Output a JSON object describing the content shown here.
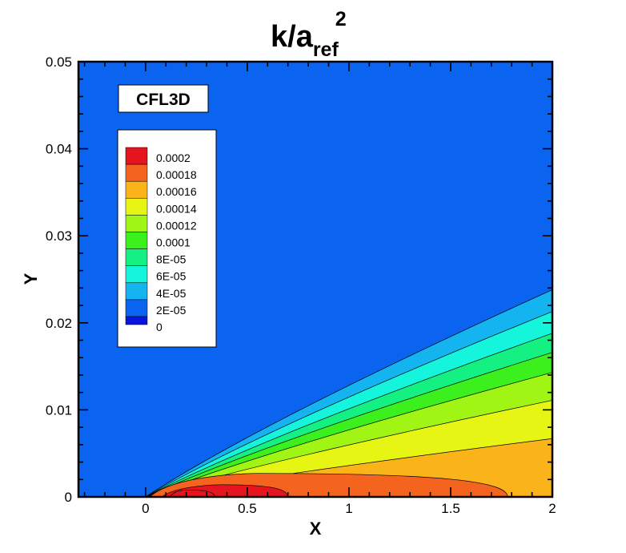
{
  "chart_data": {
    "type": "contour",
    "title": {
      "main": "k/a",
      "sub": "ref",
      "sup": "2"
    },
    "tag": "CFL3D",
    "xlabel": "X",
    "ylabel": "Y",
    "xlim": [
      -0.33,
      2.0
    ],
    "ylim": [
      0,
      0.05
    ],
    "x_ticks": [
      {
        "v": 0,
        "label": "0"
      },
      {
        "v": 0.5,
        "label": "0.5"
      },
      {
        "v": 1,
        "label": "1"
      },
      {
        "v": 1.5,
        "label": "1.5"
      },
      {
        "v": 2,
        "label": "2"
      }
    ],
    "y_ticks": [
      {
        "v": 0,
        "label": "0"
      },
      {
        "v": 0.01,
        "label": "0.01"
      },
      {
        "v": 0.02,
        "label": "0.02"
      },
      {
        "v": 0.03,
        "label": "0.03"
      },
      {
        "v": 0.04,
        "label": "0.04"
      },
      {
        "v": 0.05,
        "label": "0.05"
      }
    ],
    "x_minor_step": 0.1,
    "y_minor_step": 0.002,
    "background_color": "#0a64f0",
    "legend_location": "upper-left",
    "levels": [
      {
        "value": 0.0002,
        "label": "0.0002",
        "color": "#e6141e"
      },
      {
        "value": 0.00018,
        "label": "0.00018",
        "color": "#f5641e"
      },
      {
        "value": 0.00016,
        "label": "0.00016",
        "color": "#fab419"
      },
      {
        "value": 0.00014,
        "label": "0.00014",
        "color": "#e6f514"
      },
      {
        "value": 0.00012,
        "label": "0.00012",
        "color": "#a0f514"
      },
      {
        "value": 0.0001,
        "label": "0.0001",
        "color": "#3cf01e"
      },
      {
        "value": 8e-05,
        "label": "8E-05",
        "color": "#14f082"
      },
      {
        "value": 6e-05,
        "label": "6E-05",
        "color": "#14f5dc"
      },
      {
        "value": 4e-05,
        "label": "4E-05",
        "color": "#14b4f0"
      },
      {
        "value": 2e-05,
        "label": "2E-05",
        "color": "#0a64f0"
      },
      {
        "value": 0,
        "label": "0",
        "color": "#0a14dc"
      }
    ],
    "wedge_bands": [
      {
        "fill_color": "#14b4f0",
        "y_at_x2": 0.0238
      },
      {
        "fill_color": "#14f5dc",
        "y_at_x2": 0.0213
      },
      {
        "fill_color": "#14f082",
        "y_at_x2": 0.0188
      },
      {
        "fill_color": "#3cf01e",
        "y_at_x2": 0.0166
      },
      {
        "fill_color": "#a0f514",
        "y_at_x2": 0.0143
      },
      {
        "fill_color": "#e6f514",
        "y_at_x2": 0.0111
      },
      {
        "fill_color": "#fab419",
        "y_at_x2": 0.0067
      }
    ],
    "near_wall_contours": [
      {
        "fill_color": "#f5641e",
        "x_start": 0.02,
        "x_end": 1.78,
        "peak_y": 0.0027,
        "peak_x": 0.55
      },
      {
        "fill_color": "#e6141e",
        "x_start": 0.08,
        "x_end": 0.7,
        "peak_y": 0.0014,
        "peak_x": 0.38
      },
      {
        "fill_color": "#e6141e",
        "x_start": 0.12,
        "x_end": 0.34,
        "peak_y": 0.0008,
        "peak_x": 0.2
      }
    ]
  }
}
